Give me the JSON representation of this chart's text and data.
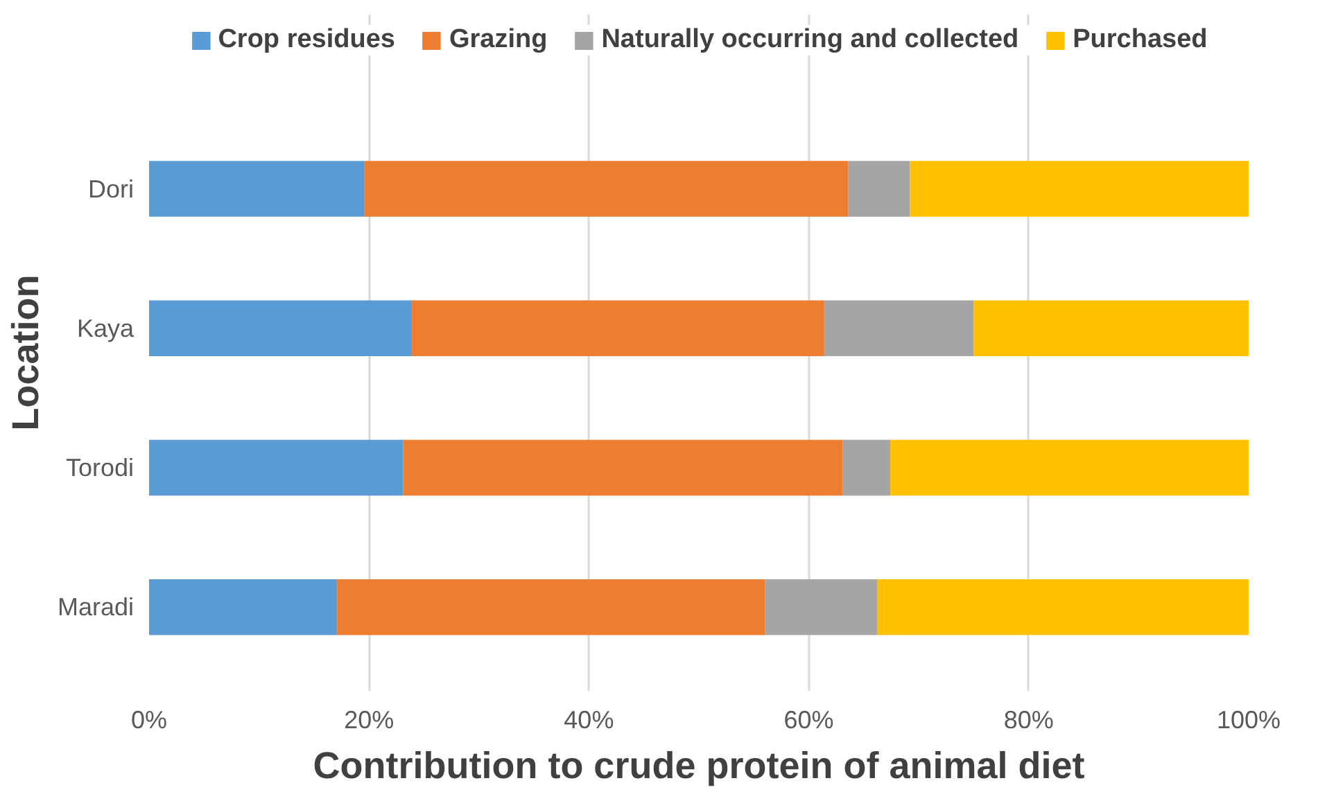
{
  "chart_data": {
    "type": "bar",
    "orientation": "horizontal",
    "stacked": true,
    "xlabel": "Contribution to crude protein of animal diet",
    "ylabel": "Location",
    "categories": [
      "Dori",
      "Kaya",
      "Torodi",
      "Maradi"
    ],
    "series": [
      {
        "name": "Crop residues",
        "color": "#5b9bd5",
        "values": [
          19.6,
          23.9,
          23.1,
          17.1
        ]
      },
      {
        "name": "Grazing",
        "color": "#ed7d31",
        "values": [
          44.0,
          37.5,
          40.0,
          38.9
        ]
      },
      {
        "name": "Naturally occurring and collected",
        "color": "#a5a5a5",
        "values": [
          5.6,
          13.6,
          4.3,
          10.2
        ]
      },
      {
        "name": "Purchased",
        "color": "#ffc000",
        "values": [
          30.8,
          25.0,
          32.6,
          33.8
        ]
      }
    ],
    "xlim": [
      0,
      100
    ],
    "xticks": [
      {
        "value": 0,
        "label": "0%"
      },
      {
        "value": 20,
        "label": "20%"
      },
      {
        "value": 40,
        "label": "40%"
      },
      {
        "value": 60,
        "label": "60%"
      },
      {
        "value": 80,
        "label": "80%"
      },
      {
        "value": 100,
        "label": "100%"
      }
    ],
    "grid": "x",
    "legend": "top"
  }
}
